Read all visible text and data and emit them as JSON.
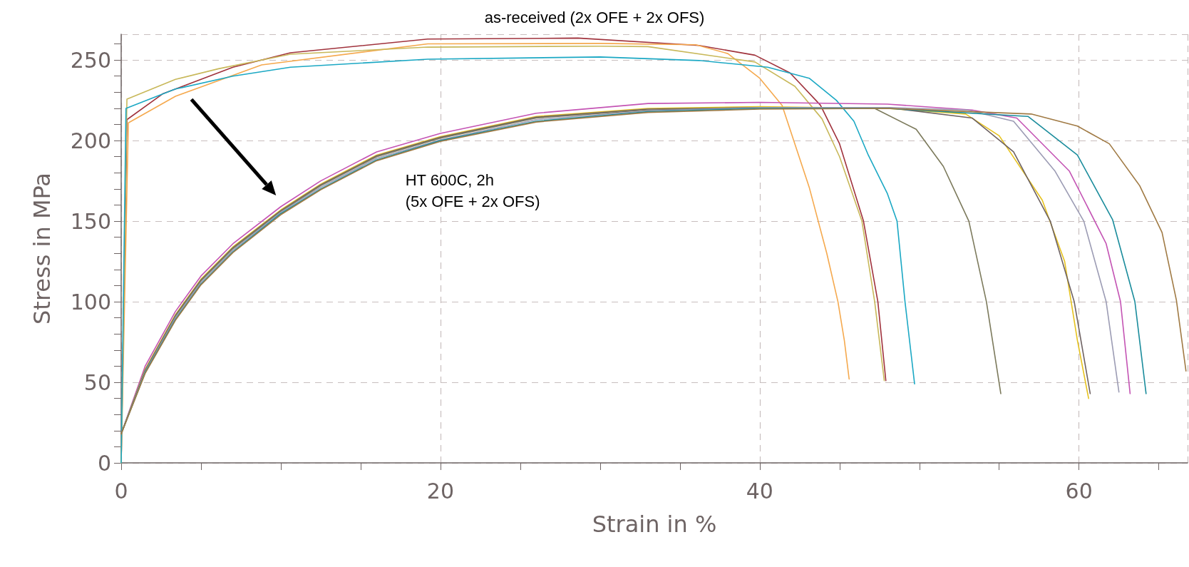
{
  "chart_data": {
    "type": "line",
    "title": "as-received (2x OFE + 2x OFS)",
    "xlabel": "Strain in %",
    "ylabel": "Stress in MPa",
    "annotations": [
      "HT 600C, 2h\n(5x OFE + 2x OFS)"
    ],
    "xlim": [
      0,
      66.8
    ],
    "ylim": [
      0,
      266
    ],
    "xticks": [
      0,
      {
        "value": 5,
        "label": null
      },
      {
        "value": 10,
        "label": null
      },
      {
        "value": 15,
        "label": null
      },
      20,
      {
        "value": 25,
        "label": null
      },
      {
        "value": 30,
        "label": null
      },
      {
        "value": 35,
        "label": null
      },
      40,
      {
        "value": 45,
        "label": null
      },
      {
        "value": 50,
        "label": null
      },
      {
        "value": 55,
        "label": null
      },
      60,
      {
        "value": 65,
        "label": null
      }
    ],
    "yticks": [
      0,
      {
        "value": 10,
        "label": null
      },
      {
        "value": 20,
        "label": null
      },
      {
        "value": 30,
        "label": null
      },
      {
        "value": 40,
        "label": null
      },
      50,
      {
        "value": 60,
        "label": null
      },
      {
        "value": 70,
        "label": null
      },
      {
        "value": 80,
        "label": null
      },
      {
        "value": 90,
        "label": null
      },
      100,
      {
        "value": 110,
        "label": null
      },
      {
        "value": 120,
        "label": null
      },
      {
        "value": 130,
        "label": null
      },
      {
        "value": 140,
        "label": null
      },
      150,
      {
        "value": 160,
        "label": null
      },
      {
        "value": 170,
        "label": null
      },
      {
        "value": 180,
        "label": null
      },
      {
        "value": 190,
        "label": null
      },
      200,
      {
        "value": 210,
        "label": null
      },
      {
        "value": 220,
        "label": null
      },
      {
        "value": 230,
        "label": null
      },
      {
        "value": 240,
        "label": null
      },
      250,
      {
        "value": 260,
        "label": null
      }
    ],
    "grid": true,
    "marker": "none",
    "line_style": "solid",
    "series": [
      {
        "color": "#a0323c",
        "x": [
          0,
          0.36,
          2.6,
          7,
          10.6,
          19.2,
          28.6,
          36.2,
          39.7,
          41.9,
          43.8,
          45,
          46.5,
          47.4,
          47.9
        ],
        "values": [
          0,
          213,
          229,
          245.5,
          254.5,
          263,
          263.6,
          259,
          253,
          242,
          222,
          198,
          150,
          100,
          51
        ]
      },
      {
        "color": "#f5a94e",
        "x": [
          0,
          0.45,
          3.4,
          8.8,
          19.2,
          30,
          36,
          38,
          40,
          41.4,
          43.1,
          44.2,
          44.9,
          45.3,
          45.6
        ],
        "values": [
          0,
          211,
          227.5,
          247,
          260,
          260.3,
          259.5,
          254,
          238.7,
          221.9,
          171,
          130,
          100,
          76,
          52
        ]
      },
      {
        "color": "#c8b85a",
        "x": [
          0,
          0.36,
          3.4,
          6.1,
          10.6,
          19.2,
          30,
          33,
          39.7,
          42.2,
          43.9,
          45,
          46.4,
          47.2,
          47.8
        ],
        "values": [
          0,
          225.7,
          238,
          244.6,
          253.6,
          258,
          258.6,
          258.3,
          248.8,
          233.7,
          213.5,
          190,
          150,
          100,
          51
        ]
      },
      {
        "color": "#1ba8c4",
        "x": [
          0,
          0.3,
          3.4,
          7,
          10.6,
          19.2,
          30,
          36.2,
          40.5,
          43.1,
          44.8,
          45.9,
          46.8,
          48,
          48.6,
          49.1,
          49.7
        ],
        "values": [
          0,
          220,
          232,
          240,
          245.5,
          250.5,
          251.9,
          249.7,
          245.5,
          238.7,
          225,
          212,
          191,
          167,
          150,
          100,
          49
        ]
      },
      {
        "color": "#c454b4",
        "x": [
          0,
          1.5,
          3.4,
          5,
          7,
          10,
          12.5,
          16,
          20,
          26,
          33,
          40,
          48,
          53.3,
          56.1,
          59.4,
          61.7,
          62.6,
          63.2
        ],
        "values": [
          18,
          60,
          94,
          116,
          136,
          159,
          175,
          193,
          204.5,
          217,
          223,
          223.7,
          222.6,
          219,
          214,
          181,
          136,
          100,
          43
        ]
      },
      {
        "color": "#e6c21e",
        "x": [
          0,
          1.5,
          3.4,
          5,
          7,
          10,
          12.5,
          16,
          20,
          26,
          33,
          40,
          48,
          52.9,
          55,
          57.7,
          59.1,
          59.9,
          60.6
        ],
        "values": [
          18,
          58,
          92,
          114,
          134,
          157,
          173,
          191,
          202.5,
          215,
          220,
          221,
          220,
          216.5,
          203,
          163,
          125,
          76,
          40
        ]
      },
      {
        "color": "#6e6262",
        "x": [
          0,
          1.5,
          3.4,
          5,
          7,
          10,
          12.5,
          16,
          20,
          26,
          33,
          40,
          48,
          53.3,
          55.9,
          58.2,
          59.7,
          60.7
        ],
        "values": [
          18,
          57.5,
          91.5,
          113.5,
          133.5,
          156.5,
          172.5,
          190.5,
          202,
          214.5,
          219.5,
          220.5,
          220.5,
          214,
          193,
          150,
          100,
          43
        ]
      },
      {
        "color": "#7c7a5c",
        "x": [
          0,
          1.5,
          3.4,
          5,
          7,
          10,
          12.5,
          16,
          20,
          26,
          33,
          40,
          47.2,
          49.8,
          51.5,
          53.1,
          54.2,
          55.1
        ],
        "values": [
          18,
          57,
          91,
          113,
          133,
          156,
          172,
          190,
          201.5,
          214,
          219,
          220.5,
          220,
          207,
          184,
          150,
          100,
          43
        ]
      },
      {
        "color": "#9c9cb4",
        "x": [
          0,
          1.5,
          3.4,
          5,
          7,
          10,
          12.5,
          16,
          20,
          26,
          33,
          40,
          48,
          53,
          55.9,
          58.5,
          60.3,
          61.7,
          62.5
        ],
        "values": [
          18,
          56.5,
          90,
          112,
          132,
          155.5,
          171,
          189,
          200.5,
          213,
          218.5,
          220.5,
          220.5,
          219,
          212,
          181,
          150,
          100,
          44
        ]
      },
      {
        "color": "#1a8c9c",
        "x": [
          0,
          1.5,
          3.4,
          5,
          7,
          10,
          12.5,
          16,
          20,
          26,
          33,
          40,
          48,
          56.8,
          59.9,
          62.1,
          63.5,
          64.2
        ],
        "values": [
          18,
          56,
          89,
          111,
          131,
          154.7,
          170,
          188,
          200,
          212,
          218,
          220,
          220,
          215,
          191,
          151,
          100,
          43
        ]
      },
      {
        "color": "#a07a44",
        "x": [
          0,
          1.5,
          3.4,
          5,
          7,
          10,
          12.5,
          16,
          20,
          26,
          33,
          40,
          48,
          57,
          59.9,
          61.9,
          63.8,
          65.2,
          66.1,
          66.7
        ],
        "values": [
          18,
          55.5,
          88.5,
          110.5,
          130.5,
          154,
          169.5,
          187.5,
          199.5,
          211.5,
          217.5,
          219.5,
          220,
          216.5,
          209,
          198,
          172,
          143,
          101,
          57
        ]
      }
    ]
  }
}
